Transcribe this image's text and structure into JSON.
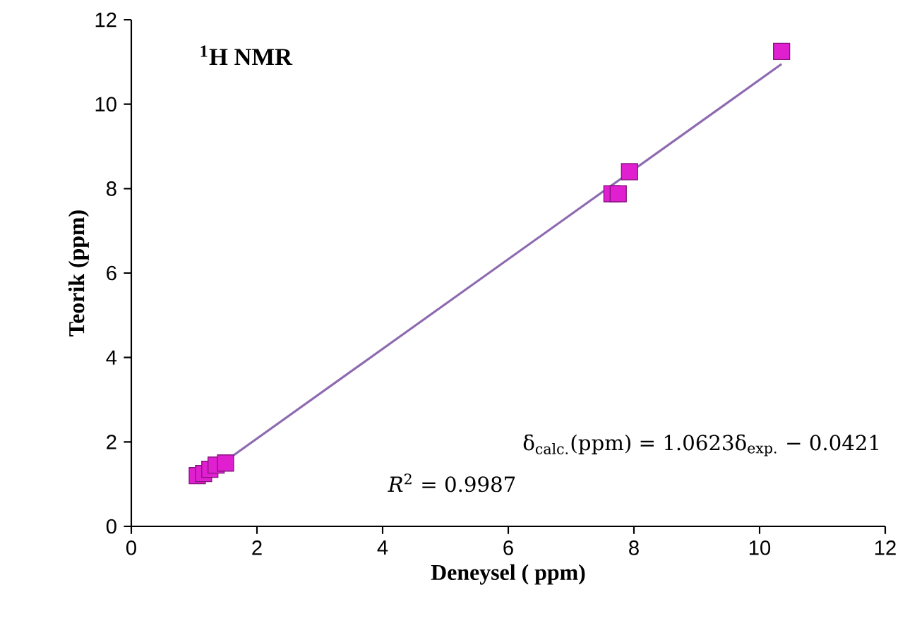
{
  "chart_data": {
    "type": "scatter",
    "xlabel": "Deneysel ( ppm)",
    "ylabel": "Teorik  (ppm)",
    "xlim": [
      0,
      12
    ],
    "ylim": [
      0,
      12
    ],
    "xticks": [
      0,
      2,
      4,
      6,
      8,
      10,
      12
    ],
    "yticks": [
      0,
      2,
      4,
      6,
      8,
      10,
      12
    ],
    "marker": "square",
    "grid": false,
    "series": [
      {
        "color": "#e020d0",
        "x": [
          1.05,
          1.15,
          1.25,
          1.35,
          1.5,
          7.65,
          7.75,
          7.93,
          10.35
        ],
        "values": [
          1.2,
          1.25,
          1.35,
          1.45,
          1.5,
          7.88,
          7.88,
          8.4,
          11.25
        ]
      },
      {
        "type": "line",
        "marker": "none",
        "color": "#8e6ab0",
        "x": [
          1.05,
          10.35
        ],
        "values": [
          1.07,
          10.95
        ]
      }
    ],
    "annotations": [
      "$^{1}$H NMR",
      "δ$_{calc.}$(ppm) = 1.0623δ$_{exp.}$ − 0.0421",
      "*R*$^{2}$ = 0.9987"
    ]
  }
}
